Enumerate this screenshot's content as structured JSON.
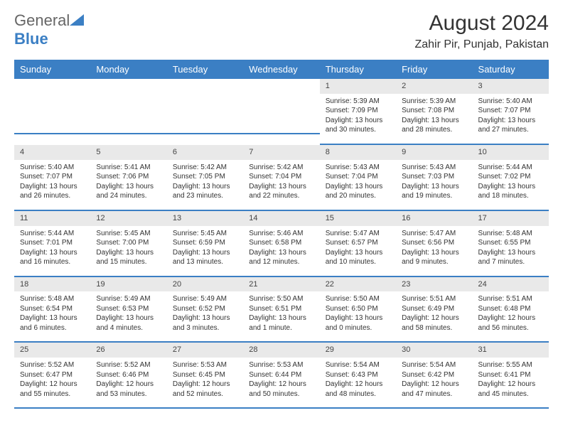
{
  "brand": {
    "name_a": "General",
    "name_b": "Blue"
  },
  "title": "August 2024",
  "location": "Zahir Pir, Punjab, Pakistan",
  "colors": {
    "header_bg": "#3b7fc4",
    "header_text": "#ffffff",
    "daynum_bg": "#e9e9e9",
    "row_divider": "#3b7fc4",
    "body_text": "#333333",
    "page_bg": "#ffffff"
  },
  "weekdays": [
    "Sunday",
    "Monday",
    "Tuesday",
    "Wednesday",
    "Thursday",
    "Friday",
    "Saturday"
  ],
  "weeks": [
    [
      {
        "day": "",
        "sunrise": "",
        "sunset": "",
        "daylight": ""
      },
      {
        "day": "",
        "sunrise": "",
        "sunset": "",
        "daylight": ""
      },
      {
        "day": "",
        "sunrise": "",
        "sunset": "",
        "daylight": ""
      },
      {
        "day": "",
        "sunrise": "",
        "sunset": "",
        "daylight": ""
      },
      {
        "day": "1",
        "sunrise": "Sunrise: 5:39 AM",
        "sunset": "Sunset: 7:09 PM",
        "daylight": "Daylight: 13 hours and 30 minutes."
      },
      {
        "day": "2",
        "sunrise": "Sunrise: 5:39 AM",
        "sunset": "Sunset: 7:08 PM",
        "daylight": "Daylight: 13 hours and 28 minutes."
      },
      {
        "day": "3",
        "sunrise": "Sunrise: 5:40 AM",
        "sunset": "Sunset: 7:07 PM",
        "daylight": "Daylight: 13 hours and 27 minutes."
      }
    ],
    [
      {
        "day": "4",
        "sunrise": "Sunrise: 5:40 AM",
        "sunset": "Sunset: 7:07 PM",
        "daylight": "Daylight: 13 hours and 26 minutes."
      },
      {
        "day": "5",
        "sunrise": "Sunrise: 5:41 AM",
        "sunset": "Sunset: 7:06 PM",
        "daylight": "Daylight: 13 hours and 24 minutes."
      },
      {
        "day": "6",
        "sunrise": "Sunrise: 5:42 AM",
        "sunset": "Sunset: 7:05 PM",
        "daylight": "Daylight: 13 hours and 23 minutes."
      },
      {
        "day": "7",
        "sunrise": "Sunrise: 5:42 AM",
        "sunset": "Sunset: 7:04 PM",
        "daylight": "Daylight: 13 hours and 22 minutes."
      },
      {
        "day": "8",
        "sunrise": "Sunrise: 5:43 AM",
        "sunset": "Sunset: 7:04 PM",
        "daylight": "Daylight: 13 hours and 20 minutes."
      },
      {
        "day": "9",
        "sunrise": "Sunrise: 5:43 AM",
        "sunset": "Sunset: 7:03 PM",
        "daylight": "Daylight: 13 hours and 19 minutes."
      },
      {
        "day": "10",
        "sunrise": "Sunrise: 5:44 AM",
        "sunset": "Sunset: 7:02 PM",
        "daylight": "Daylight: 13 hours and 18 minutes."
      }
    ],
    [
      {
        "day": "11",
        "sunrise": "Sunrise: 5:44 AM",
        "sunset": "Sunset: 7:01 PM",
        "daylight": "Daylight: 13 hours and 16 minutes."
      },
      {
        "day": "12",
        "sunrise": "Sunrise: 5:45 AM",
        "sunset": "Sunset: 7:00 PM",
        "daylight": "Daylight: 13 hours and 15 minutes."
      },
      {
        "day": "13",
        "sunrise": "Sunrise: 5:45 AM",
        "sunset": "Sunset: 6:59 PM",
        "daylight": "Daylight: 13 hours and 13 minutes."
      },
      {
        "day": "14",
        "sunrise": "Sunrise: 5:46 AM",
        "sunset": "Sunset: 6:58 PM",
        "daylight": "Daylight: 13 hours and 12 minutes."
      },
      {
        "day": "15",
        "sunrise": "Sunrise: 5:47 AM",
        "sunset": "Sunset: 6:57 PM",
        "daylight": "Daylight: 13 hours and 10 minutes."
      },
      {
        "day": "16",
        "sunrise": "Sunrise: 5:47 AM",
        "sunset": "Sunset: 6:56 PM",
        "daylight": "Daylight: 13 hours and 9 minutes."
      },
      {
        "day": "17",
        "sunrise": "Sunrise: 5:48 AM",
        "sunset": "Sunset: 6:55 PM",
        "daylight": "Daylight: 13 hours and 7 minutes."
      }
    ],
    [
      {
        "day": "18",
        "sunrise": "Sunrise: 5:48 AM",
        "sunset": "Sunset: 6:54 PM",
        "daylight": "Daylight: 13 hours and 6 minutes."
      },
      {
        "day": "19",
        "sunrise": "Sunrise: 5:49 AM",
        "sunset": "Sunset: 6:53 PM",
        "daylight": "Daylight: 13 hours and 4 minutes."
      },
      {
        "day": "20",
        "sunrise": "Sunrise: 5:49 AM",
        "sunset": "Sunset: 6:52 PM",
        "daylight": "Daylight: 13 hours and 3 minutes."
      },
      {
        "day": "21",
        "sunrise": "Sunrise: 5:50 AM",
        "sunset": "Sunset: 6:51 PM",
        "daylight": "Daylight: 13 hours and 1 minute."
      },
      {
        "day": "22",
        "sunrise": "Sunrise: 5:50 AM",
        "sunset": "Sunset: 6:50 PM",
        "daylight": "Daylight: 13 hours and 0 minutes."
      },
      {
        "day": "23",
        "sunrise": "Sunrise: 5:51 AM",
        "sunset": "Sunset: 6:49 PM",
        "daylight": "Daylight: 12 hours and 58 minutes."
      },
      {
        "day": "24",
        "sunrise": "Sunrise: 5:51 AM",
        "sunset": "Sunset: 6:48 PM",
        "daylight": "Daylight: 12 hours and 56 minutes."
      }
    ],
    [
      {
        "day": "25",
        "sunrise": "Sunrise: 5:52 AM",
        "sunset": "Sunset: 6:47 PM",
        "daylight": "Daylight: 12 hours and 55 minutes."
      },
      {
        "day": "26",
        "sunrise": "Sunrise: 5:52 AM",
        "sunset": "Sunset: 6:46 PM",
        "daylight": "Daylight: 12 hours and 53 minutes."
      },
      {
        "day": "27",
        "sunrise": "Sunrise: 5:53 AM",
        "sunset": "Sunset: 6:45 PM",
        "daylight": "Daylight: 12 hours and 52 minutes."
      },
      {
        "day": "28",
        "sunrise": "Sunrise: 5:53 AM",
        "sunset": "Sunset: 6:44 PM",
        "daylight": "Daylight: 12 hours and 50 minutes."
      },
      {
        "day": "29",
        "sunrise": "Sunrise: 5:54 AM",
        "sunset": "Sunset: 6:43 PM",
        "daylight": "Daylight: 12 hours and 48 minutes."
      },
      {
        "day": "30",
        "sunrise": "Sunrise: 5:54 AM",
        "sunset": "Sunset: 6:42 PM",
        "daylight": "Daylight: 12 hours and 47 minutes."
      },
      {
        "day": "31",
        "sunrise": "Sunrise: 5:55 AM",
        "sunset": "Sunset: 6:41 PM",
        "daylight": "Daylight: 12 hours and 45 minutes."
      }
    ]
  ]
}
